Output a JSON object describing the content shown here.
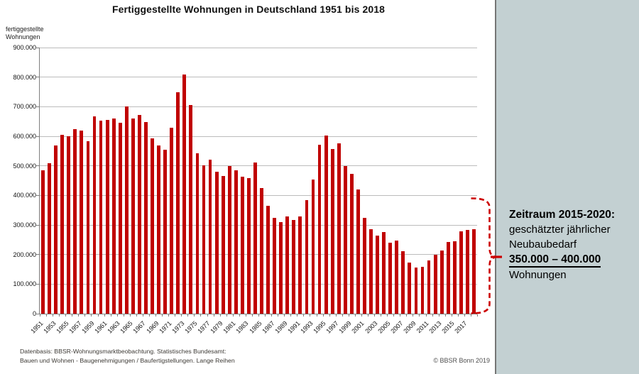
{
  "chart_data": {
    "type": "bar",
    "title": "Fertiggestellte Wohnungen in Deutschland 1951 bis 2018",
    "ylabel": "fertiggestellte Wohnungen",
    "ylabel_lines": [
      "fertiggestellte",
      "Wohnungen"
    ],
    "xlabel": "",
    "ylim": [
      0,
      900000
    ],
    "ytick_step": 100000,
    "ytick_labels": [
      "0",
      "100.000",
      "200.000",
      "300.000",
      "400.000",
      "500.000",
      "600.000",
      "700.000",
      "800.000",
      "900.000"
    ],
    "xtick_labels": [
      "1951",
      "1953",
      "1955",
      "1957",
      "1959",
      "1961",
      "1963",
      "1965",
      "1967",
      "1969",
      "1971",
      "1973",
      "1975",
      "1977",
      "1979",
      "1981",
      "1983",
      "1985",
      "1987",
      "1989",
      "1991",
      "1993",
      "1995",
      "1997",
      "1999",
      "2001",
      "2003",
      "2005",
      "2007",
      "2009",
      "2011",
      "2013",
      "2015",
      "2017"
    ],
    "grid": true,
    "legend": "none",
    "bar_color": "#c00000",
    "years": [
      1951,
      1952,
      1953,
      1954,
      1955,
      1956,
      1957,
      1958,
      1959,
      1960,
      1961,
      1962,
      1963,
      1964,
      1965,
      1966,
      1967,
      1968,
      1969,
      1970,
      1971,
      1972,
      1973,
      1974,
      1975,
      1976,
      1977,
      1978,
      1979,
      1980,
      1981,
      1982,
      1983,
      1984,
      1985,
      1986,
      1987,
      1988,
      1989,
      1990,
      1991,
      1992,
      1993,
      1994,
      1995,
      1996,
      1997,
      1998,
      1999,
      2000,
      2001,
      2002,
      2003,
      2004,
      2005,
      2006,
      2007,
      2008,
      2009,
      2010,
      2011,
      2012,
      2013,
      2014,
      2015,
      2016,
      2017,
      2018
    ],
    "values": [
      485000,
      508000,
      570000,
      604000,
      600000,
      623000,
      620000,
      584000,
      668000,
      654000,
      656000,
      660000,
      645000,
      700000,
      661000,
      671000,
      648000,
      592000,
      570000,
      554000,
      630000,
      748000,
      810000,
      706000,
      543000,
      502000,
      521000,
      480000,
      466000,
      500000,
      484000,
      464000,
      458000,
      512000,
      424000,
      366000,
      324000,
      310000,
      328000,
      316000,
      330000,
      384000,
      454000,
      572000,
      603000,
      558000,
      576000,
      500000,
      472000,
      421000,
      324000,
      286000,
      264000,
      276000,
      240000,
      248000,
      211000,
      174000,
      157000,
      159000,
      181000,
      200000,
      213000,
      243000,
      246000,
      278000,
      284000,
      285000
    ]
  },
  "annotation": {
    "bracket_color": "#cc0000",
    "lines": [
      {
        "text": "Zeitraum 2015-2020:",
        "bold": true,
        "underline": false
      },
      {
        "text": "geschätzter jährlicher",
        "bold": false,
        "underline": false
      },
      {
        "text": "Neubaubedarf",
        "bold": false,
        "underline": false
      },
      {
        "text": "350.000 – 400.000",
        "bold": true,
        "underline": true
      },
      {
        "text": "Wohnungen",
        "bold": false,
        "underline": false
      }
    ]
  },
  "footer": {
    "line1": "Datenbasis: BBSR-Wohnungsmarktbeobachtung. Statistisches Bundesamt:",
    "line2": "Bauen und Wohnen - Baugenehmigungen / Baufertigstellungen. Lange Reihen",
    "copyright": "© BBSR Bonn 2019"
  },
  "colors": {
    "sidebar_bg": "#c3d0d2",
    "sidebar_border": "#757575",
    "bar": "#c00000",
    "bracket": "#cc0000",
    "gridline": "#bcbcbc",
    "axis": "#7f7f7f"
  }
}
